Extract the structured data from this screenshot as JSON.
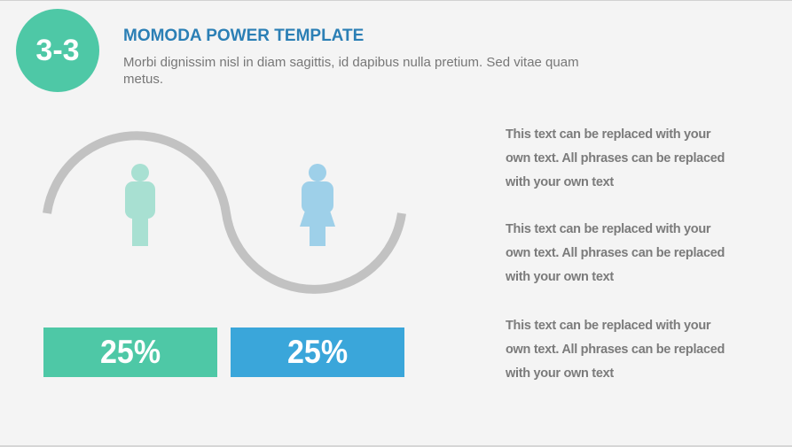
{
  "badge": {
    "label": "3-3"
  },
  "header": {
    "title": "MOMODA POWER TEMPLATE",
    "subtitle": "Morbi dignissim nisl in diam sagittis, id dapibus nulla pretium. Sed vitae quam metus."
  },
  "stats": [
    {
      "value": "25%",
      "color": "#4ec8a6"
    },
    {
      "value": "25%",
      "color": "#3aa6da"
    }
  ],
  "figures": [
    {
      "icon": "male-person-icon",
      "color": "#a8e0d2"
    },
    {
      "icon": "female-person-icon",
      "color": "#9ed0e9"
    }
  ],
  "paragraphs": [
    "This text can be replaced with your own text. All phrases can be replaced with your own text",
    "This text can be replaced with your own text. All phrases can be replaced with your own text",
    "This text can be replaced with your own text. All phrases can be replaced with your own text"
  ],
  "colors": {
    "background": "#f4f4f4",
    "accent_green": "#4ec8a6",
    "accent_blue": "#3aa6da",
    "title": "#2b7fb5",
    "wave": "#c2c2c2",
    "text": "#7b7b7b"
  }
}
